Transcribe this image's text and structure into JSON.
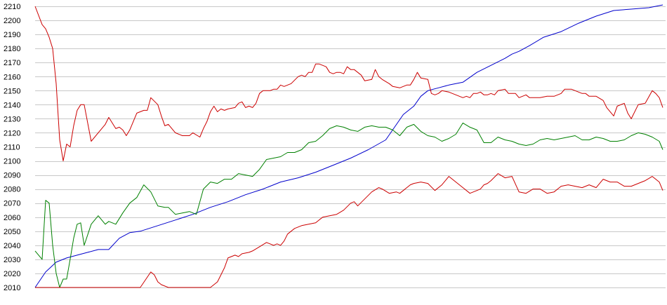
{
  "chart_data": {
    "type": "line",
    "title": "",
    "xlabel": "",
    "ylabel": "",
    "ylim": [
      2010,
      2210
    ],
    "y_ticks": [
      2010,
      2020,
      2030,
      2040,
      2050,
      2060,
      2070,
      2080,
      2090,
      2100,
      2110,
      2120,
      2130,
      2140,
      2150,
      2160,
      2170,
      2180,
      2190,
      2200,
      2210
    ],
    "y_tick_labels": [
      "2010",
      "2020",
      "2030",
      "2040",
      "2050",
      "2060",
      "2070",
      "2080",
      "2090",
      "2100",
      "2110",
      "2120",
      "2130",
      "2140",
      "2150",
      "2160",
      "2170",
      "2180",
      "2190",
      "2200",
      "2210"
    ],
    "x_range": [
      0,
      179
    ],
    "grid": "horizontal",
    "legend": "none",
    "series": [
      {
        "color": "#0000cc",
        "x": [
          0,
          3,
          6,
          9,
          12,
          15,
          18,
          21,
          24,
          27,
          30,
          35,
          40,
          45,
          50,
          55,
          60,
          65,
          70,
          75,
          80,
          85,
          90,
          95,
          100,
          105,
          108,
          110,
          112,
          115,
          118,
          122,
          126,
          130,
          134,
          136,
          138,
          141,
          145,
          150,
          155,
          160,
          165,
          170,
          175,
          179
        ],
        "values": [
          2010,
          2021,
          2028,
          2031,
          2033,
          2035,
          2037,
          2037,
          2045,
          2049,
          2050,
          2054,
          2058,
          2062,
          2067,
          2071,
          2076,
          2080,
          2085,
          2088,
          2092,
          2097,
          2102,
          2108,
          2115,
          2133,
          2139,
          2146,
          2150,
          2152,
          2154,
          2156,
          2163,
          2168,
          2173,
          2176,
          2178,
          2182,
          2188,
          2192,
          2198,
          2203,
          2207,
          2208,
          2209,
          2211
        ]
      },
      {
        "color": "#cc0000",
        "x": [
          0,
          2,
          3,
          4,
          5,
          6,
          7,
          8,
          9,
          10,
          11,
          12,
          13,
          14,
          16,
          18,
          20,
          21,
          23,
          24,
          25,
          26,
          27,
          29,
          31,
          32,
          33,
          35,
          36,
          37,
          38,
          40,
          42,
          43,
          44,
          45,
          47,
          48,
          49,
          50,
          51,
          52,
          53,
          54,
          55,
          57,
          58,
          59,
          60,
          61,
          62,
          63,
          64,
          65,
          67,
          68,
          69,
          70,
          71,
          72,
          73,
          75,
          76,
          77,
          78,
          79,
          80,
          81,
          83,
          84,
          85,
          86,
          87,
          88,
          89,
          90,
          91,
          92,
          93,
          94,
          96,
          97,
          98,
          99,
          101,
          102,
          104,
          105,
          106,
          107,
          108,
          109,
          110,
          112,
          113,
          114,
          115,
          116,
          118,
          120,
          122,
          123,
          124,
          125,
          126,
          127,
          128,
          129,
          130,
          131,
          132,
          134,
          135,
          136,
          137,
          138,
          140,
          141,
          142,
          144,
          146,
          148,
          150,
          151,
          153,
          155,
          156,
          157,
          158,
          160,
          162,
          163,
          165,
          166,
          168,
          169,
          170,
          172,
          174,
          176,
          177,
          178,
          179
        ],
        "values": [
          2210,
          2197,
          2194,
          2188,
          2180,
          2155,
          2115,
          2100,
          2112,
          2110,
          2125,
          2136,
          2140,
          2140,
          2114,
          2120,
          2126,
          2131,
          2123,
          2124,
          2122,
          2118,
          2122,
          2134,
          2136,
          2136,
          2145,
          2140,
          2132,
          2125,
          2126,
          2120,
          2118,
          2118,
          2118,
          2120,
          2117,
          2123,
          2128,
          2135,
          2139,
          2135,
          2137,
          2136,
          2137,
          2138,
          2141,
          2142,
          2138,
          2139,
          2138,
          2141,
          2148,
          2150,
          2150,
          2151,
          2151,
          2154,
          2153,
          2154,
          2155,
          2160,
          2161,
          2160,
          2163,
          2163,
          2169,
          2169,
          2167,
          2163,
          2162,
          2163,
          2163,
          2162,
          2167,
          2165,
          2165,
          2163,
          2161,
          2157,
          2158,
          2165,
          2160,
          2158,
          2155,
          2153,
          2152,
          2153,
          2154,
          2154,
          2158,
          2163,
          2159,
          2158,
          2148,
          2147,
          2148,
          2150,
          2149,
          2147,
          2145,
          2146,
          2145,
          2148,
          2148,
          2149,
          2147,
          2147,
          2148,
          2147,
          2150,
          2151,
          2148,
          2148,
          2148,
          2145,
          2147,
          2145,
          2145,
          2145,
          2146,
          2146,
          2148,
          2151,
          2151,
          2149,
          2148,
          2148,
          2146,
          2146,
          2143,
          2138,
          2132,
          2139,
          2141,
          2134,
          2130,
          2140,
          2141,
          2150,
          2148,
          2145,
          2138
        ]
      },
      {
        "color": "#008000",
        "x": [
          0,
          2,
          3,
          4,
          5,
          6,
          7,
          8,
          9,
          10,
          11,
          12,
          13,
          14,
          16,
          18,
          20,
          21,
          23,
          25,
          27,
          29,
          31,
          33,
          35,
          37,
          38,
          40,
          42,
          44,
          46,
          48,
          50,
          52,
          54,
          56,
          58,
          60,
          62,
          64,
          66,
          68,
          70,
          72,
          74,
          76,
          78,
          80,
          82,
          84,
          86,
          88,
          90,
          92,
          94,
          96,
          98,
          100,
          102,
          104,
          106,
          108,
          110,
          112,
          114,
          116,
          118,
          120,
          122,
          124,
          126,
          128,
          130,
          132,
          134,
          136,
          138,
          140,
          142,
          144,
          146,
          148,
          150,
          152,
          154,
          156,
          158,
          160,
          162,
          164,
          166,
          168,
          170,
          172,
          174,
          176,
          178,
          179
        ],
        "values": [
          2036,
          2030,
          2072,
          2070,
          2040,
          2020,
          2010,
          2016,
          2016,
          2030,
          2045,
          2055,
          2056,
          2040,
          2055,
          2061,
          2055,
          2057,
          2055,
          2063,
          2070,
          2074,
          2083,
          2078,
          2068,
          2067,
          2067,
          2062,
          2063,
          2064,
          2062,
          2080,
          2085,
          2084,
          2087,
          2087,
          2091,
          2090,
          2089,
          2094,
          2101,
          2102,
          2103,
          2106,
          2106,
          2108,
          2113,
          2114,
          2118,
          2123,
          2125,
          2124,
          2122,
          2121,
          2124,
          2125,
          2124,
          2124,
          2122,
          2118,
          2124,
          2126,
          2121,
          2118,
          2117,
          2114,
          2116,
          2119,
          2127,
          2124,
          2122,
          2113,
          2113,
          2117,
          2115,
          2114,
          2112,
          2111,
          2112,
          2115,
          2116,
          2115,
          2116,
          2117,
          2118,
          2115,
          2115,
          2117,
          2116,
          2114,
          2114,
          2115,
          2118,
          2120,
          2119,
          2117,
          2114,
          2108
        ]
      },
      {
        "color": "#cc0000",
        "x": [
          0,
          30,
          33,
          34,
          35,
          36,
          37,
          38,
          40,
          42,
          44,
          46,
          48,
          50,
          52,
          53,
          54,
          55,
          57,
          58,
          59,
          61,
          62,
          64,
          66,
          68,
          69,
          70,
          71,
          72,
          74,
          76,
          78,
          80,
          81,
          82,
          84,
          86,
          88,
          90,
          91,
          92,
          94,
          96,
          98,
          99,
          101,
          103,
          104,
          105,
          106,
          107,
          108,
          110,
          112,
          114,
          116,
          118,
          120,
          122,
          124,
          126,
          127,
          128,
          129,
          130,
          132,
          134,
          136,
          138,
          140,
          142,
          144,
          146,
          148,
          150,
          152,
          154,
          156,
          158,
          160,
          162,
          164,
          166,
          168,
          170,
          172,
          174,
          176,
          178,
          179
        ],
        "values": [
          2010,
          2010,
          2021,
          2019,
          2014,
          2012,
          2011,
          2010,
          2010,
          2010,
          2010,
          2010,
          2010,
          2010,
          2014,
          2019,
          2024,
          2031,
          2033,
          2032,
          2034,
          2035,
          2036,
          2039,
          2042,
          2040,
          2041,
          2040,
          2043,
          2048,
          2052,
          2054,
          2055,
          2056,
          2058,
          2060,
          2061,
          2062,
          2065,
          2070,
          2071,
          2068,
          2073,
          2078,
          2081,
          2080,
          2077,
          2078,
          2077,
          2079,
          2081,
          2083,
          2084,
          2085,
          2084,
          2079,
          2083,
          2089,
          2085,
          2081,
          2077,
          2079,
          2080,
          2083,
          2084,
          2086,
          2091,
          2088,
          2089,
          2078,
          2077,
          2080,
          2080,
          2077,
          2078,
          2082,
          2083,
          2082,
          2081,
          2083,
          2081,
          2087,
          2085,
          2085,
          2082,
          2082,
          2084,
          2086,
          2089,
          2085,
          2079
        ]
      }
    ]
  }
}
